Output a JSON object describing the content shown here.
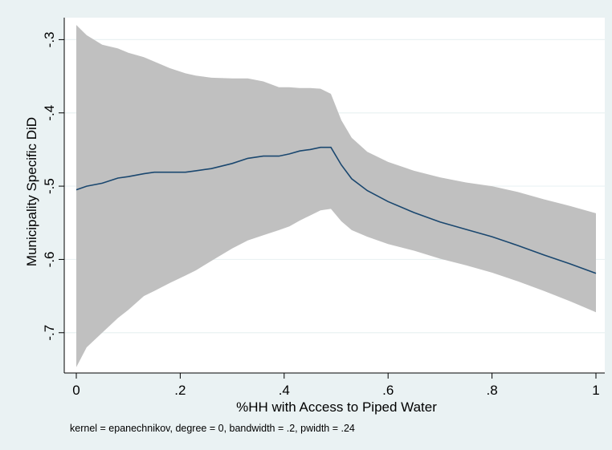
{
  "chart_data": {
    "type": "line",
    "title": "",
    "xlabel": "%HH with Access to Piped Water",
    "ylabel": "Municipality Specific DiD",
    "note": "kernel = epanechnikov, degree = 0, bandwidth = .2, pwidth = .24",
    "xlim": [
      0,
      1
    ],
    "ylim": [
      -0.755,
      -0.27
    ],
    "x_ticks": [
      {
        "value": 0,
        "label": "0"
      },
      {
        "value": 0.2,
        "label": ".2"
      },
      {
        "value": 0.4,
        "label": ".4"
      },
      {
        "value": 0.6,
        "label": ".6"
      },
      {
        "value": 0.8,
        "label": ".8"
      },
      {
        "value": 1,
        "label": "1"
      }
    ],
    "y_ticks": [
      {
        "value": -0.3,
        "label": "-.3"
      },
      {
        "value": -0.4,
        "label": "-.4"
      },
      {
        "value": -0.5,
        "label": "-.5"
      },
      {
        "value": -0.6,
        "label": "-.6"
      },
      {
        "value": -0.7,
        "label": "-.7"
      }
    ],
    "grid": {
      "x": false,
      "y": true
    },
    "colors": {
      "line": "#1a476f",
      "band": "#c0c0c0",
      "plot_bg": "#ffffff",
      "outer_bg": "#eaf2f3",
      "grid": "#eaf2f3"
    },
    "series": [
      {
        "x": [
          0,
          0.02,
          0.05,
          0.08,
          0.1,
          0.13,
          0.15,
          0.18,
          0.21,
          0.23,
          0.26,
          0.3,
          0.33,
          0.36,
          0.39,
          0.41,
          0.43,
          0.45,
          0.47,
          0.49,
          0.51,
          0.53,
          0.56,
          0.6,
          0.65,
          0.7,
          0.75,
          0.8,
          0.85,
          0.9,
          0.95,
          1
        ],
        "y": [
          -0.505,
          -0.5,
          -0.496,
          -0.489,
          -0.487,
          -0.483,
          -0.481,
          -0.481,
          -0.481,
          -0.479,
          -0.476,
          -0.469,
          -0.462,
          -0.459,
          -0.459,
          -0.456,
          -0.452,
          -0.45,
          -0.447,
          -0.447,
          -0.471,
          -0.49,
          -0.506,
          -0.521,
          -0.536,
          -0.549,
          -0.559,
          -0.569,
          -0.581,
          -0.594,
          -0.606,
          -0.619
        ]
      }
    ],
    "confidence_band": {
      "x": [
        0,
        0.02,
        0.05,
        0.08,
        0.1,
        0.13,
        0.15,
        0.18,
        0.21,
        0.23,
        0.26,
        0.3,
        0.33,
        0.36,
        0.39,
        0.41,
        0.43,
        0.45,
        0.47,
        0.49,
        0.51,
        0.53,
        0.56,
        0.6,
        0.65,
        0.7,
        0.75,
        0.8,
        0.85,
        0.9,
        0.95,
        1
      ],
      "upper": [
        -0.28,
        -0.294,
        -0.307,
        -0.312,
        -0.318,
        -0.324,
        -0.33,
        -0.339,
        -0.346,
        -0.349,
        -0.352,
        -0.353,
        -0.353,
        -0.357,
        -0.365,
        -0.365,
        -0.366,
        -0.366,
        -0.367,
        -0.374,
        -0.41,
        -0.434,
        -0.453,
        -0.467,
        -0.479,
        -0.488,
        -0.495,
        -0.5,
        -0.508,
        -0.518,
        -0.527,
        -0.537
      ],
      "lower": [
        -0.747,
        -0.72,
        -0.7,
        -0.68,
        -0.669,
        -0.65,
        -0.643,
        -0.632,
        -0.622,
        -0.615,
        -0.602,
        -0.585,
        -0.574,
        -0.567,
        -0.56,
        -0.555,
        -0.547,
        -0.54,
        -0.533,
        -0.531,
        -0.548,
        -0.56,
        -0.569,
        -0.579,
        -0.588,
        -0.599,
        -0.608,
        -0.618,
        -0.63,
        -0.643,
        -0.657,
        -0.672
      ]
    }
  }
}
